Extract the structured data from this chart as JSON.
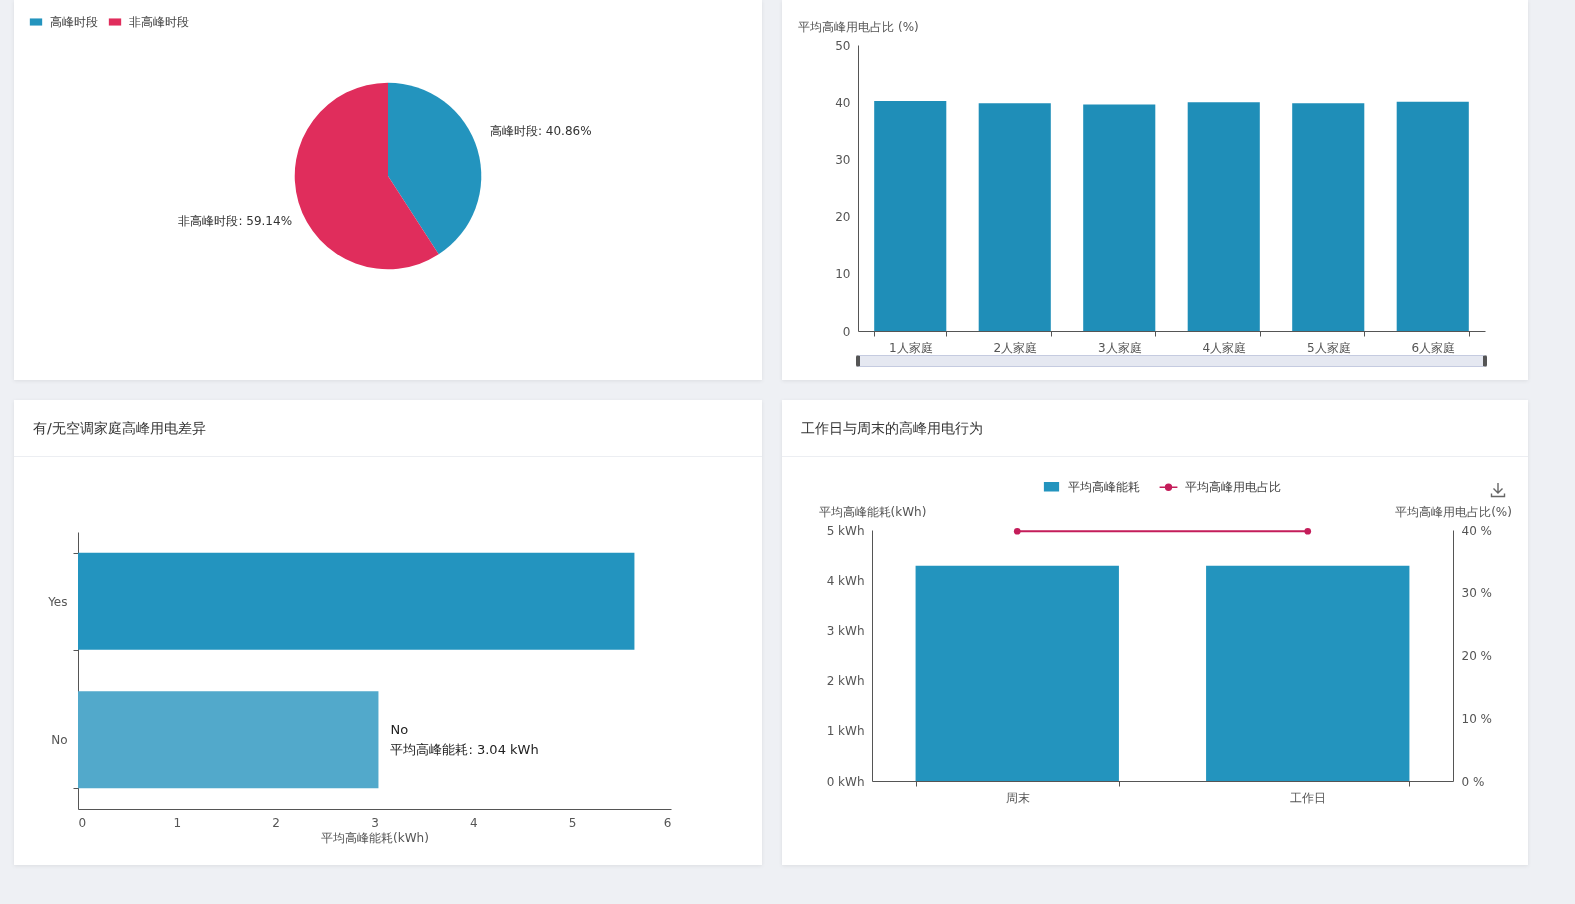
{
  "chart_data": [
    {
      "type": "pie",
      "categories": [
        "高峰时段",
        "非高峰时段"
      ],
      "values": [
        40.86,
        59.14
      ],
      "colors": [
        "#2394be",
        "#e02d5c"
      ],
      "value_labels": [
        "高峰时段: 40.86%",
        "非高峰时段: 59.14%"
      ],
      "legend": "top left"
    },
    {
      "type": "bar",
      "ylabel": "平均高峰用电占比 (%)",
      "categories": [
        "1人家庭",
        "2人家庭",
        "3人家庭",
        "4人家庭",
        "5人家庭",
        "6人家庭"
      ],
      "values": [
        40.2,
        39.8,
        39.6,
        40.0,
        39.8,
        40.1
      ],
      "color": "#1f8eb8",
      "ylim": [
        0,
        50
      ],
      "yticks": [
        0,
        10,
        20,
        30,
        40,
        50
      ]
    },
    {
      "type": "bar",
      "orientation": "horizontal",
      "title": "有/无空调家庭高峰用电差异",
      "xlabel": "平均高峰能耗(kWh)",
      "categories": [
        "Yes",
        "No"
      ],
      "values": [
        5.63,
        3.04
      ],
      "colors": [
        "#2394bf",
        "#52a9cb"
      ],
      "xlim": [
        0,
        6
      ],
      "xticks": [
        0,
        1,
        2,
        3,
        4,
        5,
        6
      ],
      "annotations": [
        {
          "text": "No",
          "x": 3.04,
          "y": "No"
        },
        {
          "text": "平均高峰能耗: 3.04 kWh",
          "x": 3.04,
          "y": "No"
        }
      ]
    },
    {
      "type": "bar",
      "title": "工作日与周末的高峰用电行为",
      "ylabel": "平均高峰能耗(kWh)",
      "y2label": "平均高峰用电占比(%)",
      "categories": [
        "周末",
        "工作日"
      ],
      "series": [
        {
          "name": "平均高峰能耗",
          "type": "bar",
          "color": "#2394be",
          "values": [
            4.29,
            4.29
          ]
        },
        {
          "name": "平均高峰用电占比",
          "type": "line",
          "axis": "y2",
          "color": "#c41d5a",
          "values": [
            39.8,
            39.8
          ]
        }
      ],
      "ylim": [
        0,
        5
      ],
      "yticks": [
        {
          "value": 0,
          "label": "0 kWh"
        },
        {
          "value": 1,
          "label": "1 kWh"
        },
        {
          "value": 2,
          "label": "2 kWh"
        },
        {
          "value": 3,
          "label": "3 kWh"
        },
        {
          "value": 4,
          "label": "4 kWh"
        },
        {
          "value": 5,
          "label": "5 kWh"
        }
      ],
      "y2lim": [
        0,
        40
      ],
      "y2ticks": [
        {
          "value": 0,
          "label": "0 %"
        },
        {
          "value": 10,
          "label": "10 %"
        },
        {
          "value": 20,
          "label": "20 %"
        },
        {
          "value": 30,
          "label": "30 %"
        },
        {
          "value": 40,
          "label": "40 %"
        }
      ],
      "legend": "top",
      "marker": "circle"
    }
  ]
}
